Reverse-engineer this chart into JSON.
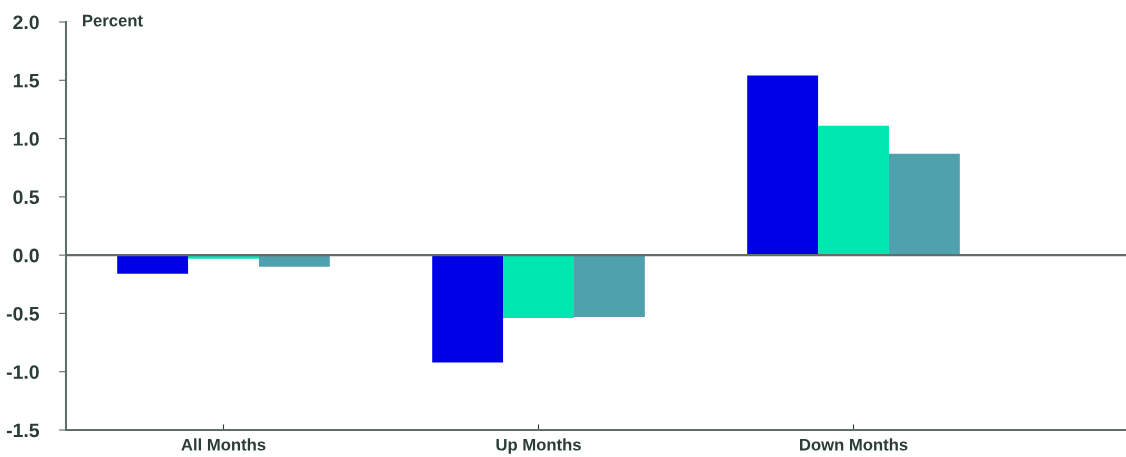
{
  "chart_data": {
    "type": "bar",
    "ylabel": "Percent",
    "categories": [
      "All Months",
      "Up Months",
      "Down Months"
    ],
    "series": [
      {
        "color": "#0000e6",
        "values": [
          -0.16,
          -0.92,
          1.54
        ]
      },
      {
        "color": "#00e6b0",
        "values": [
          -0.03,
          -0.54,
          1.11
        ]
      },
      {
        "color": "#4fa1ae",
        "values": [
          -0.1,
          -0.53,
          0.87
        ]
      }
    ],
    "ylim": [
      -1.5,
      2.0
    ],
    "yticks": [
      {
        "value": -1.5,
        "label": "-1.5"
      },
      {
        "value": -1.0,
        "label": "-1.0"
      },
      {
        "value": -0.5,
        "label": "-0.5"
      },
      {
        "value": 0.0,
        "label": "0.0"
      },
      {
        "value": 0.5,
        "label": "0.5"
      },
      {
        "value": 1.0,
        "label": "1.0"
      },
      {
        "value": 1.5,
        "label": "1.5"
      },
      {
        "value": 2.0,
        "label": "2.0"
      }
    ],
    "ref_lines": [
      {
        "axis": "y",
        "value": 0,
        "color": "#5f6f68"
      }
    ],
    "grid": false,
    "legend": false
  }
}
